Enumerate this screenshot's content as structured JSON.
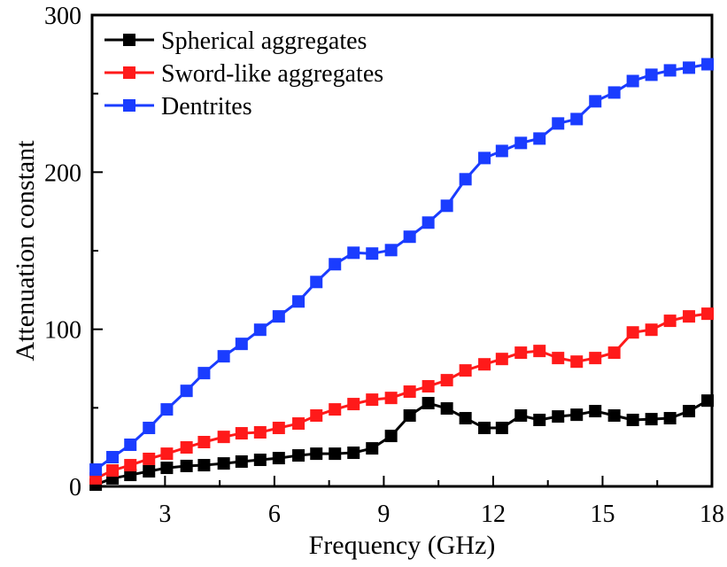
{
  "chart_data": {
    "type": "line",
    "title": "",
    "xlabel": "Frequency (GHz)",
    "ylabel": "Attenuation constant",
    "xlim": [
      1,
      18
    ],
    "ylim": [
      0,
      300
    ],
    "xticks": [
      3,
      6,
      9,
      12,
      15,
      18
    ],
    "xtick_labels": [
      "3",
      "6",
      "9",
      "12",
      "15",
      "18"
    ],
    "xminor_ticks": [
      4.5,
      7.5,
      10.5,
      13.5,
      16.5
    ],
    "yticks": [
      0,
      100,
      200,
      300
    ],
    "ytick_labels": [
      "0",
      "100",
      "200",
      "300"
    ],
    "yminor_ticks": [
      50,
      150,
      250
    ],
    "grid": false,
    "legend_position": "top-left",
    "marker": "square",
    "x": [
      1.1,
      1.56,
      2.05,
      2.56,
      3.05,
      3.59,
      4.07,
      4.61,
      5.1,
      5.61,
      6.12,
      6.66,
      7.15,
      7.66,
      8.17,
      8.68,
      9.2,
      9.71,
      10.22,
      10.73,
      11.24,
      11.76,
      12.24,
      12.76,
      13.27,
      13.78,
      14.29,
      14.8,
      15.32,
      15.83,
      16.34,
      16.85,
      17.37,
      17.88
    ],
    "series": [
      {
        "name": "Spherical aggregates",
        "color": "#000000",
        "values": [
          1.1,
          5.1,
          7.3,
          9.6,
          11.8,
          13.0,
          13.5,
          14.6,
          15.8,
          16.9,
          18.0,
          19.7,
          20.8,
          20.8,
          21.4,
          24.2,
          32.1,
          45.1,
          53.0,
          49.6,
          43.4,
          37.2,
          37.2,
          45.1,
          42.3,
          44.5,
          45.6,
          47.9,
          45.1,
          42.3,
          42.8,
          43.4,
          47.9,
          54.6
        ]
      },
      {
        "name": "Sword-like aggregates",
        "color": "#ff1a1a",
        "values": [
          5.1,
          10.1,
          13.5,
          17.5,
          20.8,
          24.8,
          28.2,
          31.5,
          33.8,
          34.4,
          37.2,
          40.0,
          45.1,
          49.0,
          52.4,
          55.2,
          56.3,
          60.3,
          63.7,
          67.6,
          73.8,
          77.7,
          81.1,
          85.1,
          86.2,
          81.7,
          79.4,
          81.7,
          85.1,
          98.0,
          99.7,
          105.4,
          108.2,
          109.9
        ]
      },
      {
        "name": "Dentrites",
        "color": "#1a3cff",
        "values": [
          10.7,
          18.6,
          26.5,
          37.2,
          49.0,
          60.8,
          72.1,
          82.8,
          90.7,
          99.7,
          108.2,
          117.7,
          130.1,
          141.4,
          148.7,
          148.2,
          150.4,
          158.9,
          167.9,
          178.6,
          195.5,
          209.0,
          213.5,
          218.6,
          221.4,
          231.0,
          233.8,
          245.1,
          250.7,
          258.0,
          262.0,
          264.8,
          266.5,
          268.7
        ]
      }
    ]
  }
}
